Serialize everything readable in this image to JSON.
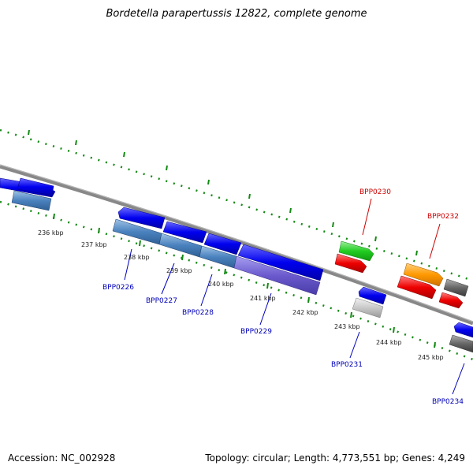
{
  "title": "Bordetella parapertussis 12822, complete genome",
  "footer": {
    "accession": "Accession: NC_002928",
    "summary": "Topology: circular; Length: 4,773,551 bp; Genes: 4,249"
  },
  "colors": {
    "backbone": "#888888",
    "tick": "#138a13",
    "forward_label": "#cc0000",
    "reverse_label": "#0000bb"
  },
  "kbp_labels": [
    "236 kbp",
    "237 kbp",
    "238 kbp",
    "239 kbp",
    "240 kbp",
    "241 kbp",
    "242 kbp",
    "243 kbp",
    "244 kbp",
    "245 kbp"
  ],
  "gene_labels": [
    "BPP0226",
    "BPP0227",
    "BPP0228",
    "BPP0229",
    "BPP0230",
    "BPP0231",
    "BPP0232",
    "BPP0234"
  ]
}
